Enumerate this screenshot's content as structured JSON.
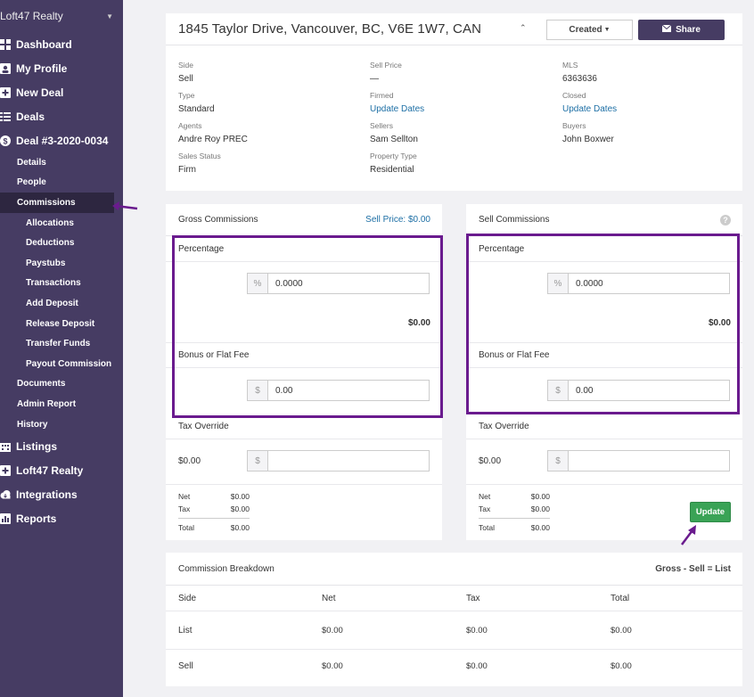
{
  "sidebar": {
    "brand": "Loft47 Realty",
    "top": [
      {
        "label": "Dashboard",
        "icon": "dashboard-icon"
      },
      {
        "label": "My Profile",
        "icon": "profile-icon"
      },
      {
        "label": "New Deal",
        "icon": "plus-icon"
      },
      {
        "label": "Deals",
        "icon": "list-icon"
      },
      {
        "label": "Deal #3-2020-0034",
        "icon": "dollar-icon"
      }
    ],
    "deal_items": [
      "Details",
      "People",
      "Commissions"
    ],
    "commission_items": [
      "Allocations",
      "Deductions",
      "Paystubs",
      "Transactions",
      "Add Deposit",
      "Release Deposit",
      "Transfer Funds",
      "Payout Commission"
    ],
    "more_items": [
      "Documents",
      "Admin Report",
      "History"
    ],
    "bottom": [
      {
        "label": "Listings",
        "icon": "building-icon"
      },
      {
        "label": "Loft47 Realty",
        "icon": "office-icon"
      },
      {
        "label": "Integrations",
        "icon": "cloud-icon"
      },
      {
        "label": "Reports",
        "icon": "chart-icon"
      }
    ]
  },
  "header": {
    "address": "1845 Taylor Drive, Vancouver, BC, V6E 1W7, CAN",
    "created_label": "Created",
    "share_label": "Share"
  },
  "info": {
    "side_label": "Side",
    "side": "Sell",
    "sell_price_label": "Sell Price",
    "sell_price": "—",
    "mls_label": "MLS",
    "mls": "6363636",
    "type_label": "Type",
    "type": "Standard",
    "firmed_label": "Firmed",
    "firmed": "Update Dates",
    "closed_label": "Closed",
    "closed": "Update Dates",
    "agents_label": "Agents",
    "agents": "Andre Roy PREC",
    "sellers_label": "Sellers",
    "sellers": "Sam Sellton",
    "buyers_label": "Buyers",
    "buyers": "John Boxwer",
    "status_label": "Sales Status",
    "status": "Firm",
    "property_label": "Property Type",
    "property": "Residential"
  },
  "gross": {
    "title": "Gross Commissions",
    "sell_price": "Sell Price: $0.00",
    "percentage_label": "Percentage",
    "pct_addon": "%",
    "pct_value": "0.0000",
    "pct_amount": "$0.00",
    "bonus_label": "Bonus or Flat Fee",
    "bonus_addon": "$",
    "bonus_value": "0.00",
    "tax_label": "Tax Override",
    "tax_amount": "$0.00",
    "tax_addon": "$",
    "tax_value": "",
    "net_label": "Net",
    "net": "$0.00",
    "tax_row_label": "Tax",
    "tax": "$0.00",
    "total_label": "Total",
    "total": "$0.00"
  },
  "sell": {
    "title": "Sell Commissions",
    "percentage_label": "Percentage",
    "pct_addon": "%",
    "pct_value": "0.0000",
    "pct_amount": "$0.00",
    "bonus_label": "Bonus or Flat Fee",
    "bonus_addon": "$",
    "bonus_value": "0.00",
    "tax_label": "Tax Override",
    "tax_amount": "$0.00",
    "tax_addon": "$",
    "tax_value": "",
    "net_label": "Net",
    "net": "$0.00",
    "tax_row_label": "Tax",
    "tax": "$0.00",
    "total_label": "Total",
    "total": "$0.00",
    "update_label": "Update"
  },
  "breakdown": {
    "title": "Commission Breakdown",
    "formula": "Gross - Sell = List",
    "headers": [
      "Side",
      "Net",
      "Tax",
      "Total"
    ],
    "rows": [
      [
        "List",
        "$0.00",
        "$0.00",
        "$0.00"
      ],
      [
        "Sell",
        "$0.00",
        "$0.00",
        "$0.00"
      ]
    ]
  },
  "colors": {
    "sidebar": "#463c63",
    "highlight": "#6a1b8e",
    "update": "#3aa356",
    "link": "#1d6fa5"
  }
}
